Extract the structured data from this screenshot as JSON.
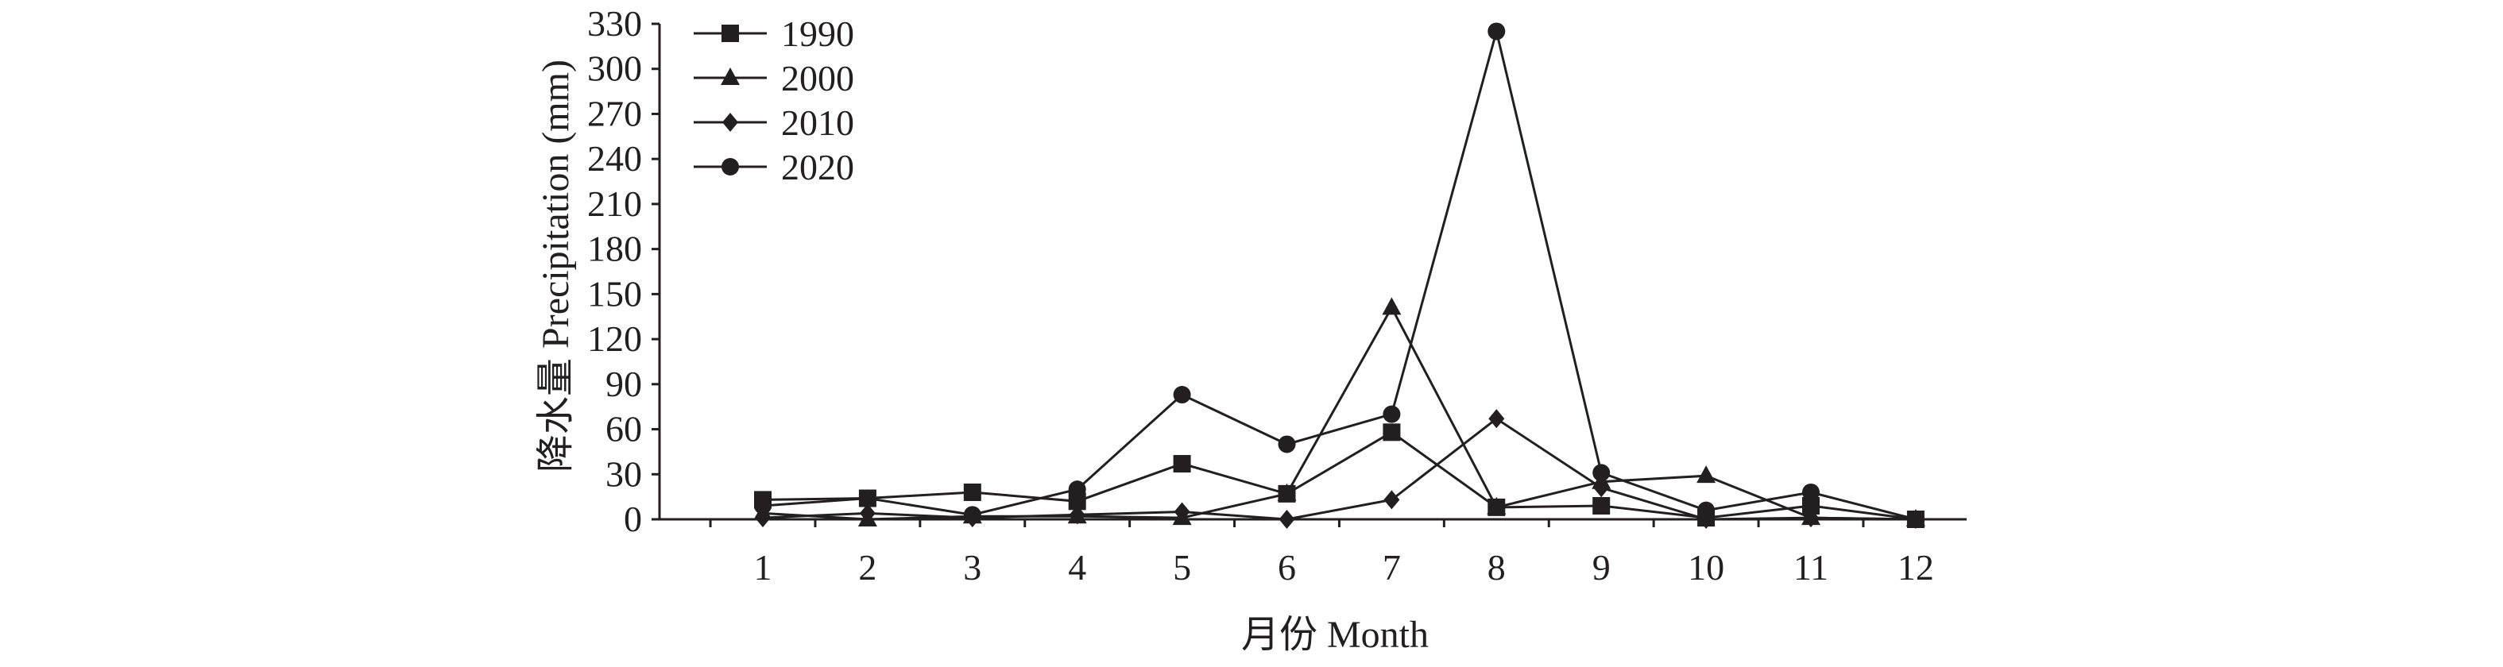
{
  "chart_data": {
    "type": "line",
    "title": "",
    "xlabel": "月份 Month",
    "ylabel": "降水量 Precipitation (mm)",
    "categories": [
      "1",
      "2",
      "3",
      "4",
      "5",
      "6",
      "7",
      "8",
      "9",
      "10",
      "11",
      "12"
    ],
    "y_ticks": [
      "0",
      "30",
      "60",
      "90",
      "120",
      "150",
      "180",
      "210",
      "240",
      "270",
      "300",
      "330"
    ],
    "ylim": [
      0,
      330
    ],
    "grid": false,
    "legend_position": "top-left",
    "series": [
      {
        "name": "1990",
        "marker": "square",
        "values": [
          13,
          14,
          18,
          12,
          37,
          17,
          58,
          8,
          9,
          1,
          9,
          0
        ]
      },
      {
        "name": "2000",
        "marker": "triangle",
        "values": [
          4,
          0,
          2,
          2,
          1,
          17,
          141,
          8,
          25,
          29,
          1,
          0
        ]
      },
      {
        "name": "2010",
        "marker": "diamond",
        "values": [
          1,
          4,
          1,
          3,
          5,
          0,
          13,
          67,
          21,
          0,
          1,
          0
        ]
      },
      {
        "name": "2020",
        "marker": "circle",
        "values": [
          9,
          14,
          3,
          20,
          83,
          50,
          70,
          325,
          31,
          6,
          18,
          0
        ]
      }
    ]
  }
}
